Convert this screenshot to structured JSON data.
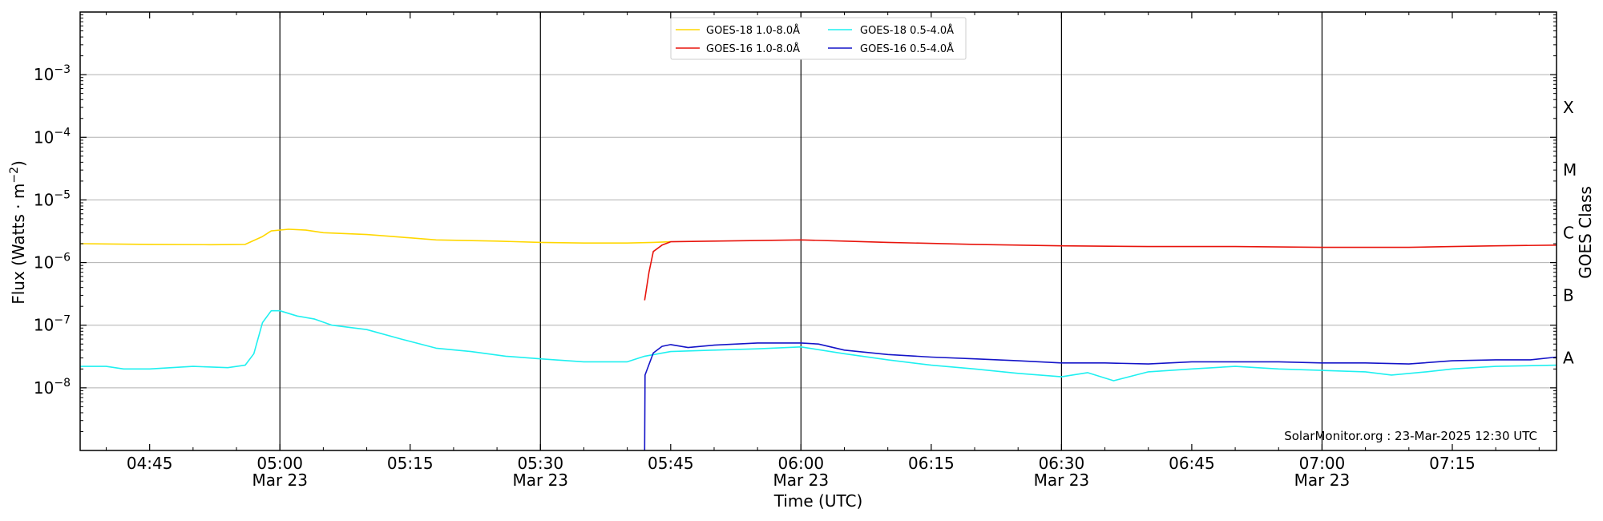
{
  "chart_data": {
    "type": "line",
    "xlabel": "Time (UTC)",
    "ylabel_main": "Flux (Watts · m",
    "ylabel_exp": "−2",
    "ylabel_close": ")",
    "right_axis_label": "GOES Class",
    "credit": "SolarMonitor.org : 23-Mar-2025 12:30 UTC",
    "x_range": [
      "04:37",
      "07:27"
    ],
    "y_range": [
      1e-09,
      0.01
    ],
    "y_scale": "log",
    "grid": "horizontal at decades",
    "legend_placement": "top-center",
    "y_ticks": [
      {
        "value": 0.001,
        "base": "10",
        "exp": "−3"
      },
      {
        "value": 0.0001,
        "base": "10",
        "exp": "−4"
      },
      {
        "value": 1e-05,
        "base": "10",
        "exp": "−5"
      },
      {
        "value": 1e-06,
        "base": "10",
        "exp": "−6"
      },
      {
        "value": 1e-07,
        "base": "10",
        "exp": "−7"
      },
      {
        "value": 1e-08,
        "base": "10",
        "exp": "−8"
      }
    ],
    "x_ticks": [
      {
        "time": "04:45",
        "label": "04:45",
        "date": ""
      },
      {
        "time": "05:00",
        "label": "05:00",
        "date": "Mar 23"
      },
      {
        "time": "05:15",
        "label": "05:15",
        "date": ""
      },
      {
        "time": "05:30",
        "label": "05:30",
        "date": "Mar 23"
      },
      {
        "time": "05:45",
        "label": "05:45",
        "date": ""
      },
      {
        "time": "06:00",
        "label": "06:00",
        "date": "Mar 23"
      },
      {
        "time": "06:15",
        "label": "06:15",
        "date": ""
      },
      {
        "time": "06:30",
        "label": "06:30",
        "date": "Mar 23"
      },
      {
        "time": "06:45",
        "label": "06:45",
        "date": ""
      },
      {
        "time": "07:00",
        "label": "07:00",
        "date": "Mar 23"
      },
      {
        "time": "07:15",
        "label": "07:15",
        "date": ""
      }
    ],
    "vertical_lines": [
      "05:00",
      "05:30",
      "06:00",
      "06:30",
      "07:00"
    ],
    "goes_classes": [
      {
        "label": "A",
        "flux": 3e-08
      },
      {
        "label": "B",
        "flux": 3e-07
      },
      {
        "label": "C",
        "flux": 3e-06
      },
      {
        "label": "M",
        "flux": 3e-05
      },
      {
        "label": "X",
        "flux": 0.0003
      }
    ],
    "series": [
      {
        "name": "GOES-18 1.0-8.0Å",
        "color": "#ffd700",
        "points": [
          [
            "04:37",
            2e-06
          ],
          [
            "04:45",
            1.95e-06
          ],
          [
            "04:52",
            1.93e-06
          ],
          [
            "04:56",
            1.95e-06
          ],
          [
            "04:58",
            2.6e-06
          ],
          [
            "04:59",
            3.2e-06
          ],
          [
            "05:01",
            3.4e-06
          ],
          [
            "05:03",
            3.3e-06
          ],
          [
            "05:05",
            3e-06
          ],
          [
            "05:10",
            2.8e-06
          ],
          [
            "05:13",
            2.6e-06
          ],
          [
            "05:18",
            2.3e-06
          ],
          [
            "05:25",
            2.2e-06
          ],
          [
            "05:30",
            2.1e-06
          ],
          [
            "05:35",
            2.05e-06
          ],
          [
            "05:40",
            2.05e-06
          ],
          [
            "05:43",
            2.1e-06
          ],
          [
            "05:45",
            2.15e-06
          ]
        ]
      },
      {
        "name": "GOES-16 1.0-8.0Å",
        "color": "#e8140c",
        "points": [
          [
            "05:42",
            2.5e-07
          ],
          [
            "05:42.5",
            7e-07
          ],
          [
            "05:43",
            1.5e-06
          ],
          [
            "05:44",
            1.9e-06
          ],
          [
            "05:45",
            2.15e-06
          ],
          [
            "05:50",
            2.2e-06
          ],
          [
            "05:55",
            2.25e-06
          ],
          [
            "06:00",
            2.3e-06
          ],
          [
            "06:05",
            2.2e-06
          ],
          [
            "06:10",
            2.1e-06
          ],
          [
            "06:20",
            1.95e-06
          ],
          [
            "06:30",
            1.85e-06
          ],
          [
            "06:40",
            1.8e-06
          ],
          [
            "06:50",
            1.8e-06
          ],
          [
            "07:00",
            1.75e-06
          ],
          [
            "07:10",
            1.75e-06
          ],
          [
            "07:15",
            1.8e-06
          ],
          [
            "07:20",
            1.85e-06
          ],
          [
            "07:27",
            1.9e-06
          ]
        ]
      },
      {
        "name": "GOES-18 0.5-4.0Å",
        "color": "#1ff0f0",
        "points": [
          [
            "04:37",
            2.2e-08
          ],
          [
            "04:40",
            2.2e-08
          ],
          [
            "04:42",
            2e-08
          ],
          [
            "04:45",
            2e-08
          ],
          [
            "04:50",
            2.2e-08
          ],
          [
            "04:54",
            2.1e-08
          ],
          [
            "04:56",
            2.3e-08
          ],
          [
            "04:57",
            3.5e-08
          ],
          [
            "04:58",
            1.1e-07
          ],
          [
            "04:59",
            1.7e-07
          ],
          [
            "05:00",
            1.7e-07
          ],
          [
            "05:02",
            1.4e-07
          ],
          [
            "05:04",
            1.25e-07
          ],
          [
            "05:06",
            1e-07
          ],
          [
            "05:10",
            8.5e-08
          ],
          [
            "05:14",
            6e-08
          ],
          [
            "05:18",
            4.3e-08
          ],
          [
            "05:22",
            3.8e-08
          ],
          [
            "05:26",
            3.2e-08
          ],
          [
            "05:30",
            2.9e-08
          ],
          [
            "05:35",
            2.6e-08
          ],
          [
            "05:40",
            2.6e-08
          ],
          [
            "05:42",
            3.2e-08
          ],
          [
            "05:45",
            3.8e-08
          ],
          [
            "05:50",
            4e-08
          ],
          [
            "05:55",
            4.2e-08
          ],
          [
            "06:00",
            4.5e-08
          ],
          [
            "06:05",
            3.5e-08
          ],
          [
            "06:10",
            2.8e-08
          ],
          [
            "06:15",
            2.3e-08
          ],
          [
            "06:20",
            2e-08
          ],
          [
            "06:25",
            1.7e-08
          ],
          [
            "06:30",
            1.5e-08
          ],
          [
            "06:33",
            1.75e-08
          ],
          [
            "06:36",
            1.3e-08
          ],
          [
            "06:40",
            1.8e-08
          ],
          [
            "06:45",
            2e-08
          ],
          [
            "06:50",
            2.2e-08
          ],
          [
            "06:55",
            2e-08
          ],
          [
            "07:00",
            1.9e-08
          ],
          [
            "07:05",
            1.8e-08
          ],
          [
            "07:08",
            1.6e-08
          ],
          [
            "07:12",
            1.8e-08
          ],
          [
            "07:15",
            2e-08
          ],
          [
            "07:20",
            2.2e-08
          ],
          [
            "07:27",
            2.3e-08
          ]
        ]
      },
      {
        "name": "GOES-16 0.5-4.0Å",
        "color": "#1414c8",
        "points": [
          [
            "05:42",
            1e-09
          ],
          [
            "05:42.05",
            1.6e-08
          ],
          [
            "05:43",
            3.6e-08
          ],
          [
            "05:44",
            4.6e-08
          ],
          [
            "05:45",
            4.9e-08
          ],
          [
            "05:47",
            4.4e-08
          ],
          [
            "05:50",
            4.8e-08
          ],
          [
            "05:55",
            5.2e-08
          ],
          [
            "06:00",
            5.2e-08
          ],
          [
            "06:02",
            5e-08
          ],
          [
            "06:05",
            4e-08
          ],
          [
            "06:10",
            3.4e-08
          ],
          [
            "06:15",
            3.1e-08
          ],
          [
            "06:20",
            2.9e-08
          ],
          [
            "06:25",
            2.7e-08
          ],
          [
            "06:30",
            2.5e-08
          ],
          [
            "06:35",
            2.5e-08
          ],
          [
            "06:40",
            2.4e-08
          ],
          [
            "06:45",
            2.6e-08
          ],
          [
            "06:50",
            2.6e-08
          ],
          [
            "06:55",
            2.6e-08
          ],
          [
            "07:00",
            2.5e-08
          ],
          [
            "07:05",
            2.5e-08
          ],
          [
            "07:10",
            2.4e-08
          ],
          [
            "07:15",
            2.7e-08
          ],
          [
            "07:20",
            2.8e-08
          ],
          [
            "07:24",
            2.8e-08
          ],
          [
            "07:27",
            3.1e-08
          ]
        ]
      }
    ]
  }
}
